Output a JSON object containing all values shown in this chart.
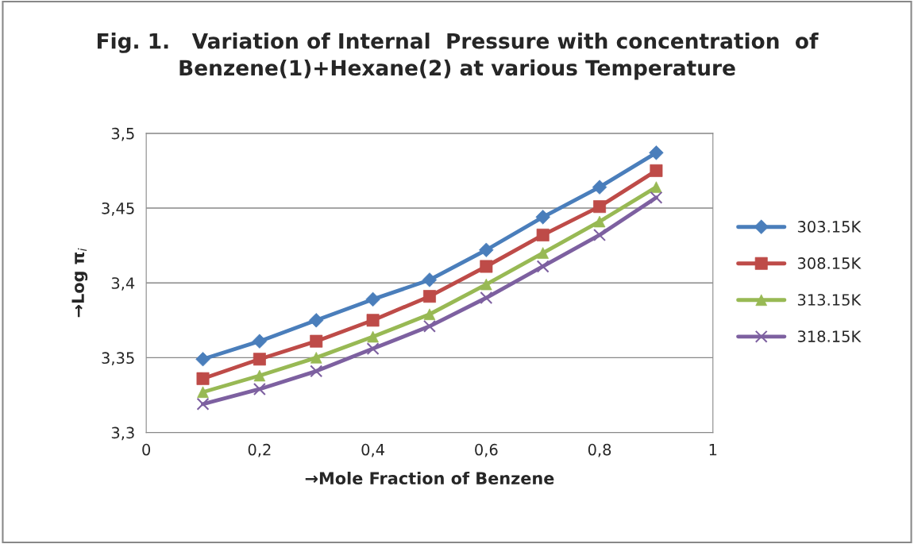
{
  "chart_data": {
    "type": "line",
    "title": "Fig. 1.   Variation of Internal  Pressure with concentration  of\nBenzene(1)+Hexane(2) at various Temperature",
    "xlabel": "→Mole Fraction of Benzene",
    "ylabel": "→Log π$_{i}$",
    "x": [
      0.1,
      0.2,
      0.3,
      0.4,
      0.5,
      0.6,
      0.7,
      0.8,
      0.9
    ],
    "series": [
      {
        "name": "303.15K",
        "color": "#4a7ebb",
        "marker": "diamond",
        "values": [
          3.349,
          3.361,
          3.375,
          3.389,
          3.402,
          3.422,
          3.444,
          3.464,
          3.487
        ]
      },
      {
        "name": "308.15K",
        "color": "#be4b48",
        "marker": "square",
        "values": [
          3.336,
          3.349,
          3.361,
          3.375,
          3.391,
          3.411,
          3.432,
          3.451,
          3.475
        ]
      },
      {
        "name": "313.15K",
        "color": "#98b954",
        "marker": "triangle",
        "values": [
          3.327,
          3.338,
          3.35,
          3.364,
          3.379,
          3.399,
          3.42,
          3.441,
          3.464
        ]
      },
      {
        "name": "318.15K",
        "color": "#7d60a0",
        "marker": "cross",
        "values": [
          3.319,
          3.329,
          3.341,
          3.356,
          3.371,
          3.39,
          3.411,
          3.432,
          3.457
        ]
      }
    ],
    "xlim": [
      0,
      1
    ],
    "ylim": [
      3.3,
      3.5
    ],
    "xticks": [
      0,
      {
        "value": 0.2,
        "label": "0,2"
      },
      {
        "value": 0.4,
        "label": "0,4"
      },
      {
        "value": 0.6,
        "label": "0,6"
      },
      {
        "value": 0.8,
        "label": "0,8"
      },
      1
    ],
    "yticks": [
      {
        "value": 3.3,
        "label": "3,3"
      },
      {
        "value": 3.35,
        "label": "3,35"
      },
      {
        "value": 3.4,
        "label": "3,4"
      },
      {
        "value": 3.45,
        "label": "3,45"
      },
      {
        "value": 3.5,
        "label": "3,5"
      }
    ],
    "grid": "y",
    "legend": "right"
  }
}
